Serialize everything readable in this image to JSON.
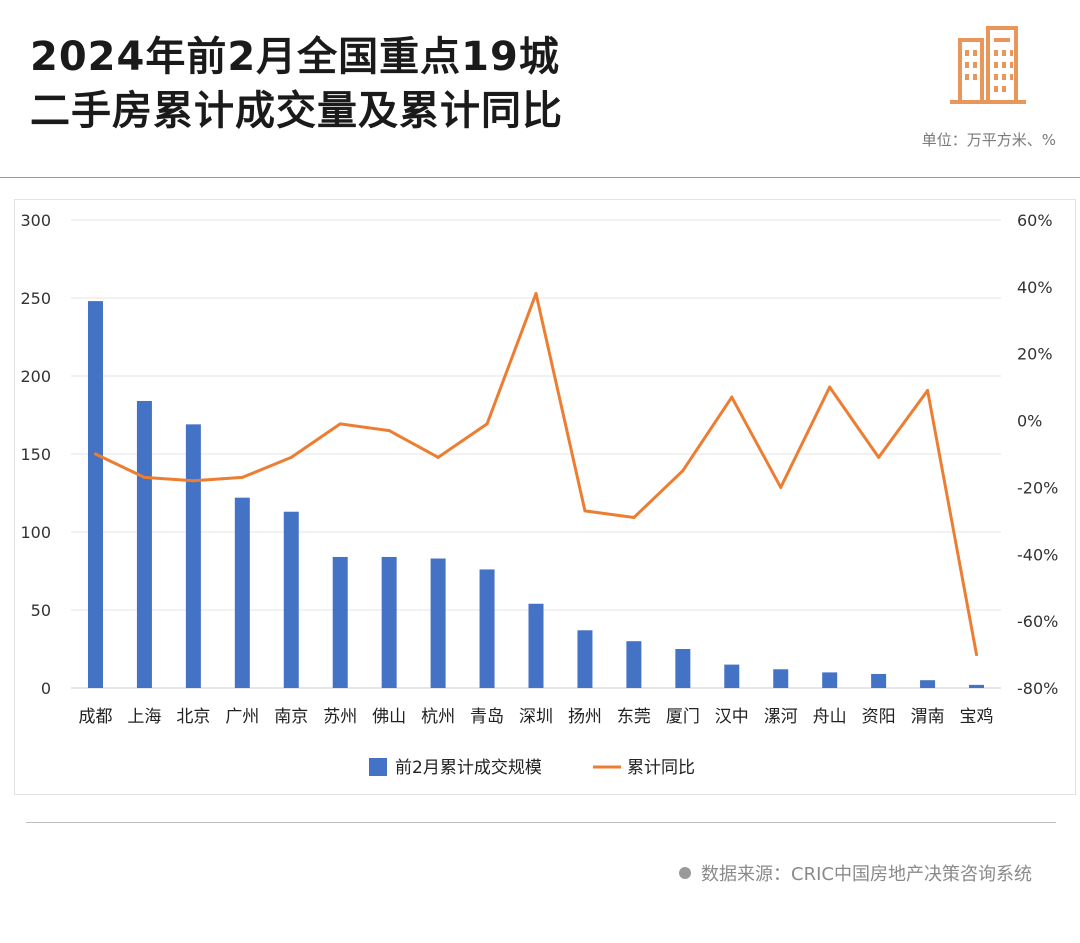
{
  "header": {
    "title_line1": "2024年前2月全国重点19城",
    "title_line2": "二手房累计成交量及累计同比",
    "unit": "单位：万平方米、%"
  },
  "footer": {
    "source": "数据来源：CRIC中国房地产决策咨询系统"
  },
  "icons": {
    "logo": "building-icon"
  },
  "colors": {
    "bar": "#4472C4",
    "line": "#ED7D31",
    "logo": "#E8965A"
  },
  "chart_data": {
    "type": "bar",
    "categories": [
      "成都",
      "上海",
      "北京",
      "广州",
      "南京",
      "苏州",
      "佛山",
      "杭州",
      "青岛",
      "深圳",
      "扬州",
      "东莞",
      "厦门",
      "汉中",
      "漯河",
      "舟山",
      "资阳",
      "渭南",
      "宝鸡"
    ],
    "series": [
      {
        "name": "前2月累计成交规模",
        "type": "bar",
        "axis": "left",
        "values": [
          248,
          184,
          169,
          122,
          113,
          84,
          84,
          83,
          76,
          54,
          37,
          30,
          25,
          15,
          12,
          10,
          9,
          5,
          2
        ]
      },
      {
        "name": "累计同比",
        "type": "line",
        "axis": "right",
        "values": [
          -10,
          -17,
          -18,
          -17,
          -11,
          -1,
          -3,
          -11,
          -1,
          38,
          -27,
          -29,
          -15,
          7,
          -20,
          10,
          -11,
          9,
          -70
        ]
      }
    ],
    "y_left": {
      "min": 0,
      "max": 300,
      "ticks": [
        "0",
        "50",
        "100",
        "150",
        "200",
        "250",
        "300"
      ]
    },
    "y_right": {
      "min": -80,
      "max": 60,
      "ticks": [
        "-80%",
        "-60%",
        "-40%",
        "-20%",
        "0%",
        "20%",
        "40%",
        "60%"
      ]
    },
    "grid": true,
    "legend_position": "bottom"
  }
}
